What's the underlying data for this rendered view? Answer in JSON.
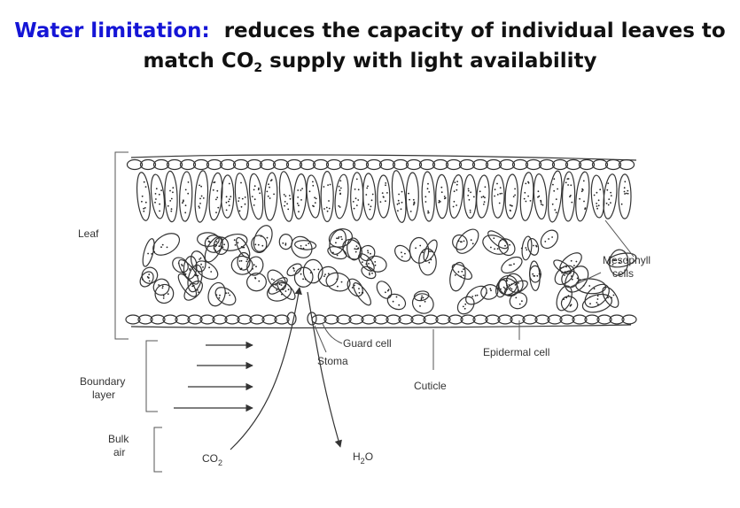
{
  "title": {
    "highlight": "Water limitation:",
    "line1_rest": "reduces the capacity of individual leaves to",
    "line2_pre": "match CO",
    "line2_sub": "2",
    "line2_post": " supply with light availability"
  },
  "labels": {
    "leaf": "Leaf",
    "boundary_1": "Boundary",
    "boundary_2": "layer",
    "bulk_1": "Bulk",
    "bulk_2": "air",
    "co2_main": "CO",
    "co2_sub": "2",
    "h2o_pre": "H",
    "h2o_sub": "2",
    "h2o_post": "O",
    "stoma": "Stoma",
    "guard_cell": "Guard cell",
    "cuticle": "Cuticle",
    "epidermal_cell": "Epidermal cell",
    "mesophyll_1": "Mesophyll",
    "mesophyll_2": "cells"
  },
  "colors": {
    "highlight": "#1515d6",
    "text": "#111111",
    "line": "#444444"
  }
}
